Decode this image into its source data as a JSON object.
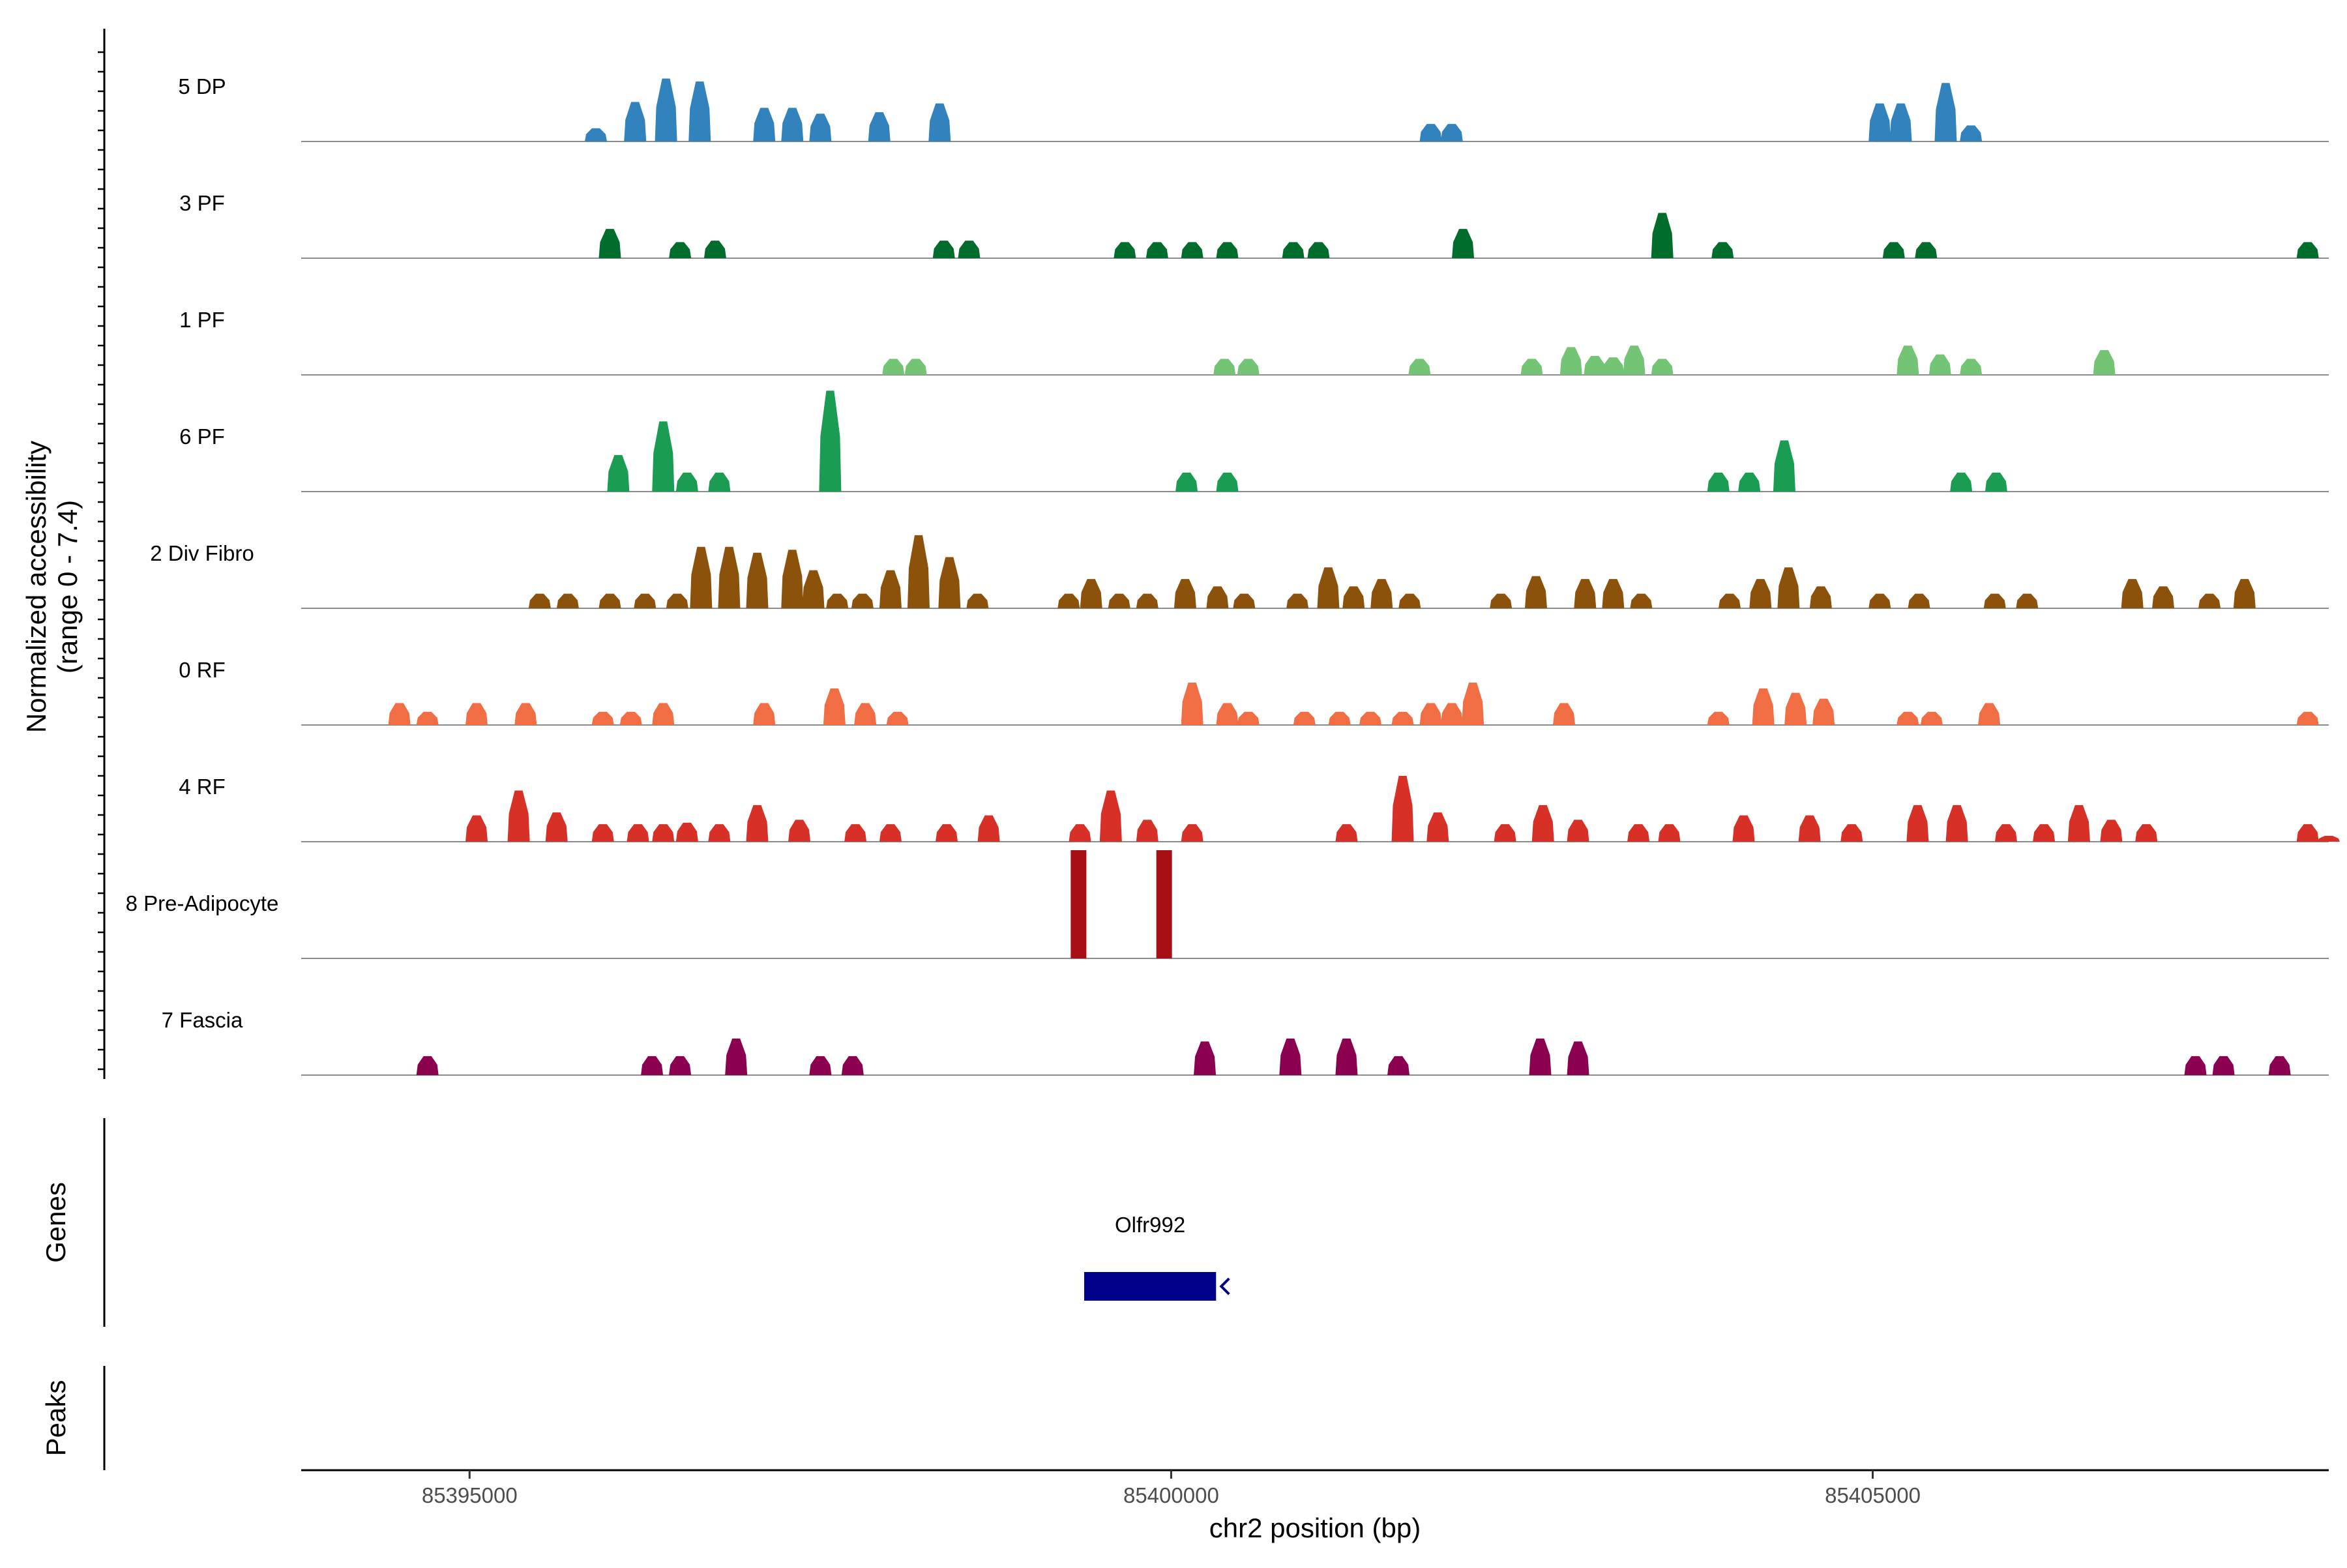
{
  "chart_data": {
    "type": "area",
    "title": "",
    "ylabel_line1": "Normalized accessibility",
    "ylabel_line2": "(range 0 - 7.4)",
    "y_range": [
      0,
      7.4
    ],
    "xlabel": "chr2 position (bp)",
    "x_range": [
      85393800,
      85408250
    ],
    "x_ticks": [
      85395000,
      85400000,
      85405000
    ],
    "x_tick_labels": [
      "85395000",
      "85400000",
      "85405000"
    ],
    "tracks": [
      {
        "name": "5 DP",
        "color": "#3182bd",
        "peaks": [
          [
            85395900,
            0.9
          ],
          [
            85396180,
            2.7
          ],
          [
            85396400,
            4.3
          ],
          [
            85396640,
            4.1
          ],
          [
            85397100,
            2.3
          ],
          [
            85397300,
            2.3
          ],
          [
            85397500,
            1.9
          ],
          [
            85397920,
            2.0
          ],
          [
            85398350,
            2.6
          ],
          [
            85401850,
            1.2
          ],
          [
            85402000,
            1.2
          ],
          [
            85405050,
            2.6
          ],
          [
            85405200,
            2.6
          ],
          [
            85405520,
            4.0
          ],
          [
            85405700,
            1.1
          ]
        ]
      },
      {
        "name": "3 PF",
        "color": "#006d2c",
        "peaks": [
          [
            85396000,
            2.0
          ],
          [
            85396500,
            1.1
          ],
          [
            85396750,
            1.2
          ],
          [
            85398380,
            1.2
          ],
          [
            85398560,
            1.2
          ],
          [
            85399670,
            1.1
          ],
          [
            85399900,
            1.1
          ],
          [
            85400150,
            1.1
          ],
          [
            85400400,
            1.1
          ],
          [
            85400870,
            1.1
          ],
          [
            85401050,
            1.1
          ],
          [
            85402080,
            2.0
          ],
          [
            85403500,
            3.1
          ],
          [
            85403930,
            1.1
          ],
          [
            85405150,
            1.1
          ],
          [
            85405380,
            1.1
          ],
          [
            85408100,
            1.1
          ]
        ]
      },
      {
        "name": "1 PF",
        "color": "#74c476",
        "peaks": [
          [
            85398020,
            1.1
          ],
          [
            85398180,
            1.1
          ],
          [
            85400380,
            1.1
          ],
          [
            85400550,
            1.1
          ],
          [
            85401770,
            1.1
          ],
          [
            85402570,
            1.1
          ],
          [
            85402850,
            1.9
          ],
          [
            85403020,
            1.3
          ],
          [
            85403150,
            1.2
          ],
          [
            85403300,
            2.0
          ],
          [
            85403500,
            1.1
          ],
          [
            85405250,
            2.0
          ],
          [
            85405480,
            1.4
          ],
          [
            85405700,
            1.1
          ],
          [
            85406650,
            1.7
          ]
        ]
      },
      {
        "name": "6 PF",
        "color": "#1a9c52",
        "peaks": [
          [
            85396060,
            2.5
          ],
          [
            85396380,
            4.8
          ],
          [
            85396550,
            1.3
          ],
          [
            85396780,
            1.3
          ],
          [
            85397570,
            6.9
          ],
          [
            85400110,
            1.3
          ],
          [
            85400400,
            1.3
          ],
          [
            85403900,
            1.3
          ],
          [
            85404120,
            1.3
          ],
          [
            85404370,
            3.5
          ],
          [
            85405630,
            1.3
          ],
          [
            85405880,
            1.3
          ]
        ]
      },
      {
        "name": "2 Div Fibro",
        "color": "#8c510a",
        "peaks": [
          [
            85395500,
            1.0
          ],
          [
            85395700,
            1.0
          ],
          [
            85396000,
            1.0
          ],
          [
            85396250,
            1.0
          ],
          [
            85396480,
            1.0
          ],
          [
            85396650,
            4.2
          ],
          [
            85396850,
            4.2
          ],
          [
            85397050,
            3.8
          ],
          [
            85397300,
            4.0
          ],
          [
            85397450,
            2.6
          ],
          [
            85397620,
            1.0
          ],
          [
            85397800,
            1.0
          ],
          [
            85398000,
            2.6
          ],
          [
            85398200,
            5.0
          ],
          [
            85398420,
            3.5
          ],
          [
            85398620,
            1.0
          ],
          [
            85399270,
            1.0
          ],
          [
            85399430,
            2.0
          ],
          [
            85399630,
            1.0
          ],
          [
            85399830,
            1.0
          ],
          [
            85400100,
            2.0
          ],
          [
            85400330,
            1.5
          ],
          [
            85400520,
            1.0
          ],
          [
            85400900,
            1.0
          ],
          [
            85401120,
            2.8
          ],
          [
            85401300,
            1.5
          ],
          [
            85401500,
            2.0
          ],
          [
            85401700,
            1.0
          ],
          [
            85402350,
            1.0
          ],
          [
            85402600,
            2.2
          ],
          [
            85402950,
            2.0
          ],
          [
            85403150,
            2.0
          ],
          [
            85403350,
            1.0
          ],
          [
            85403980,
            1.0
          ],
          [
            85404200,
            2.0
          ],
          [
            85404400,
            2.8
          ],
          [
            85404630,
            1.5
          ],
          [
            85405050,
            1.0
          ],
          [
            85405330,
            1.0
          ],
          [
            85405870,
            1.0
          ],
          [
            85406100,
            1.0
          ],
          [
            85406850,
            2.0
          ],
          [
            85407070,
            1.5
          ],
          [
            85407400,
            1.0
          ],
          [
            85407650,
            2.0
          ]
        ]
      },
      {
        "name": "0 RF",
        "color": "#f16d43",
        "peaks": [
          [
            85394500,
            1.5
          ],
          [
            85394700,
            0.9
          ],
          [
            85395050,
            1.5
          ],
          [
            85395400,
            1.5
          ],
          [
            85395950,
            0.9
          ],
          [
            85396150,
            0.9
          ],
          [
            85396380,
            1.5
          ],
          [
            85397100,
            1.5
          ],
          [
            85397600,
            2.5
          ],
          [
            85397820,
            1.5
          ],
          [
            85398050,
            0.9
          ],
          [
            85400150,
            2.9
          ],
          [
            85400400,
            1.5
          ],
          [
            85400550,
            0.9
          ],
          [
            85400950,
            0.9
          ],
          [
            85401200,
            0.9
          ],
          [
            85401420,
            0.9
          ],
          [
            85401650,
            0.9
          ],
          [
            85401850,
            1.5
          ],
          [
            85402000,
            1.5
          ],
          [
            85402150,
            2.9
          ],
          [
            85402800,
            1.5
          ],
          [
            85403900,
            0.9
          ],
          [
            85404220,
            2.5
          ],
          [
            85404450,
            2.2
          ],
          [
            85404650,
            1.8
          ],
          [
            85405250,
            0.9
          ],
          [
            85405420,
            0.9
          ],
          [
            85405830,
            1.5
          ],
          [
            85408100,
            0.9
          ]
        ]
      },
      {
        "name": "4 RF",
        "color": "#d73027",
        "peaks": [
          [
            85395050,
            1.8
          ],
          [
            85395350,
            3.5
          ],
          [
            85395620,
            2.0
          ],
          [
            85395950,
            1.2
          ],
          [
            85396200,
            1.2
          ],
          [
            85396380,
            1.2
          ],
          [
            85396550,
            1.3
          ],
          [
            85396780,
            1.2
          ],
          [
            85397050,
            2.5
          ],
          [
            85397350,
            1.5
          ],
          [
            85397750,
            1.2
          ],
          [
            85398000,
            1.2
          ],
          [
            85398400,
            1.2
          ],
          [
            85398700,
            1.8
          ],
          [
            85399350,
            1.2
          ],
          [
            85399570,
            3.5
          ],
          [
            85399830,
            1.5
          ],
          [
            85400150,
            1.2
          ],
          [
            85401250,
            1.2
          ],
          [
            85401650,
            4.5
          ],
          [
            85401900,
            2.0
          ],
          [
            85402380,
            1.2
          ],
          [
            85402650,
            2.5
          ],
          [
            85402900,
            1.5
          ],
          [
            85403330,
            1.2
          ],
          [
            85403550,
            1.2
          ],
          [
            85404080,
            1.8
          ],
          [
            85404550,
            1.8
          ],
          [
            85404850,
            1.2
          ],
          [
            85405320,
            2.5
          ],
          [
            85405600,
            2.5
          ],
          [
            85405950,
            1.2
          ],
          [
            85406220,
            1.2
          ],
          [
            85406470,
            2.5
          ],
          [
            85406700,
            1.5
          ],
          [
            85406950,
            1.2
          ],
          [
            85408100,
            1.2
          ],
          [
            85408250,
            0.4
          ]
        ]
      },
      {
        "name": "8 Pre-Adipocyte",
        "color": "#a50f15",
        "peaks": [
          [
            85399340,
            7.4
          ],
          [
            85399950,
            7.4
          ]
        ]
      },
      {
        "name": "7 Fascia",
        "color": "#8c0050",
        "peaks": [
          [
            85394700,
            1.3
          ],
          [
            85396300,
            1.3
          ],
          [
            85396500,
            1.3
          ],
          [
            85396900,
            2.5
          ],
          [
            85397500,
            1.3
          ],
          [
            85397730,
            1.3
          ],
          [
            85400240,
            2.3
          ],
          [
            85400850,
            2.5
          ],
          [
            85401250,
            2.5
          ],
          [
            85401620,
            1.3
          ],
          [
            85402630,
            2.5
          ],
          [
            85402900,
            2.3
          ],
          [
            85407300,
            1.3
          ],
          [
            85407500,
            1.3
          ],
          [
            85407900,
            1.3
          ]
        ]
      }
    ],
    "genes": [
      {
        "name": "Olfr992",
        "start": 85399380,
        "end": 85400320,
        "strand": "-",
        "color": "#00008b"
      }
    ],
    "panel_labels": {
      "genes": "Genes",
      "peaks": "Peaks"
    },
    "peaks_track": []
  }
}
